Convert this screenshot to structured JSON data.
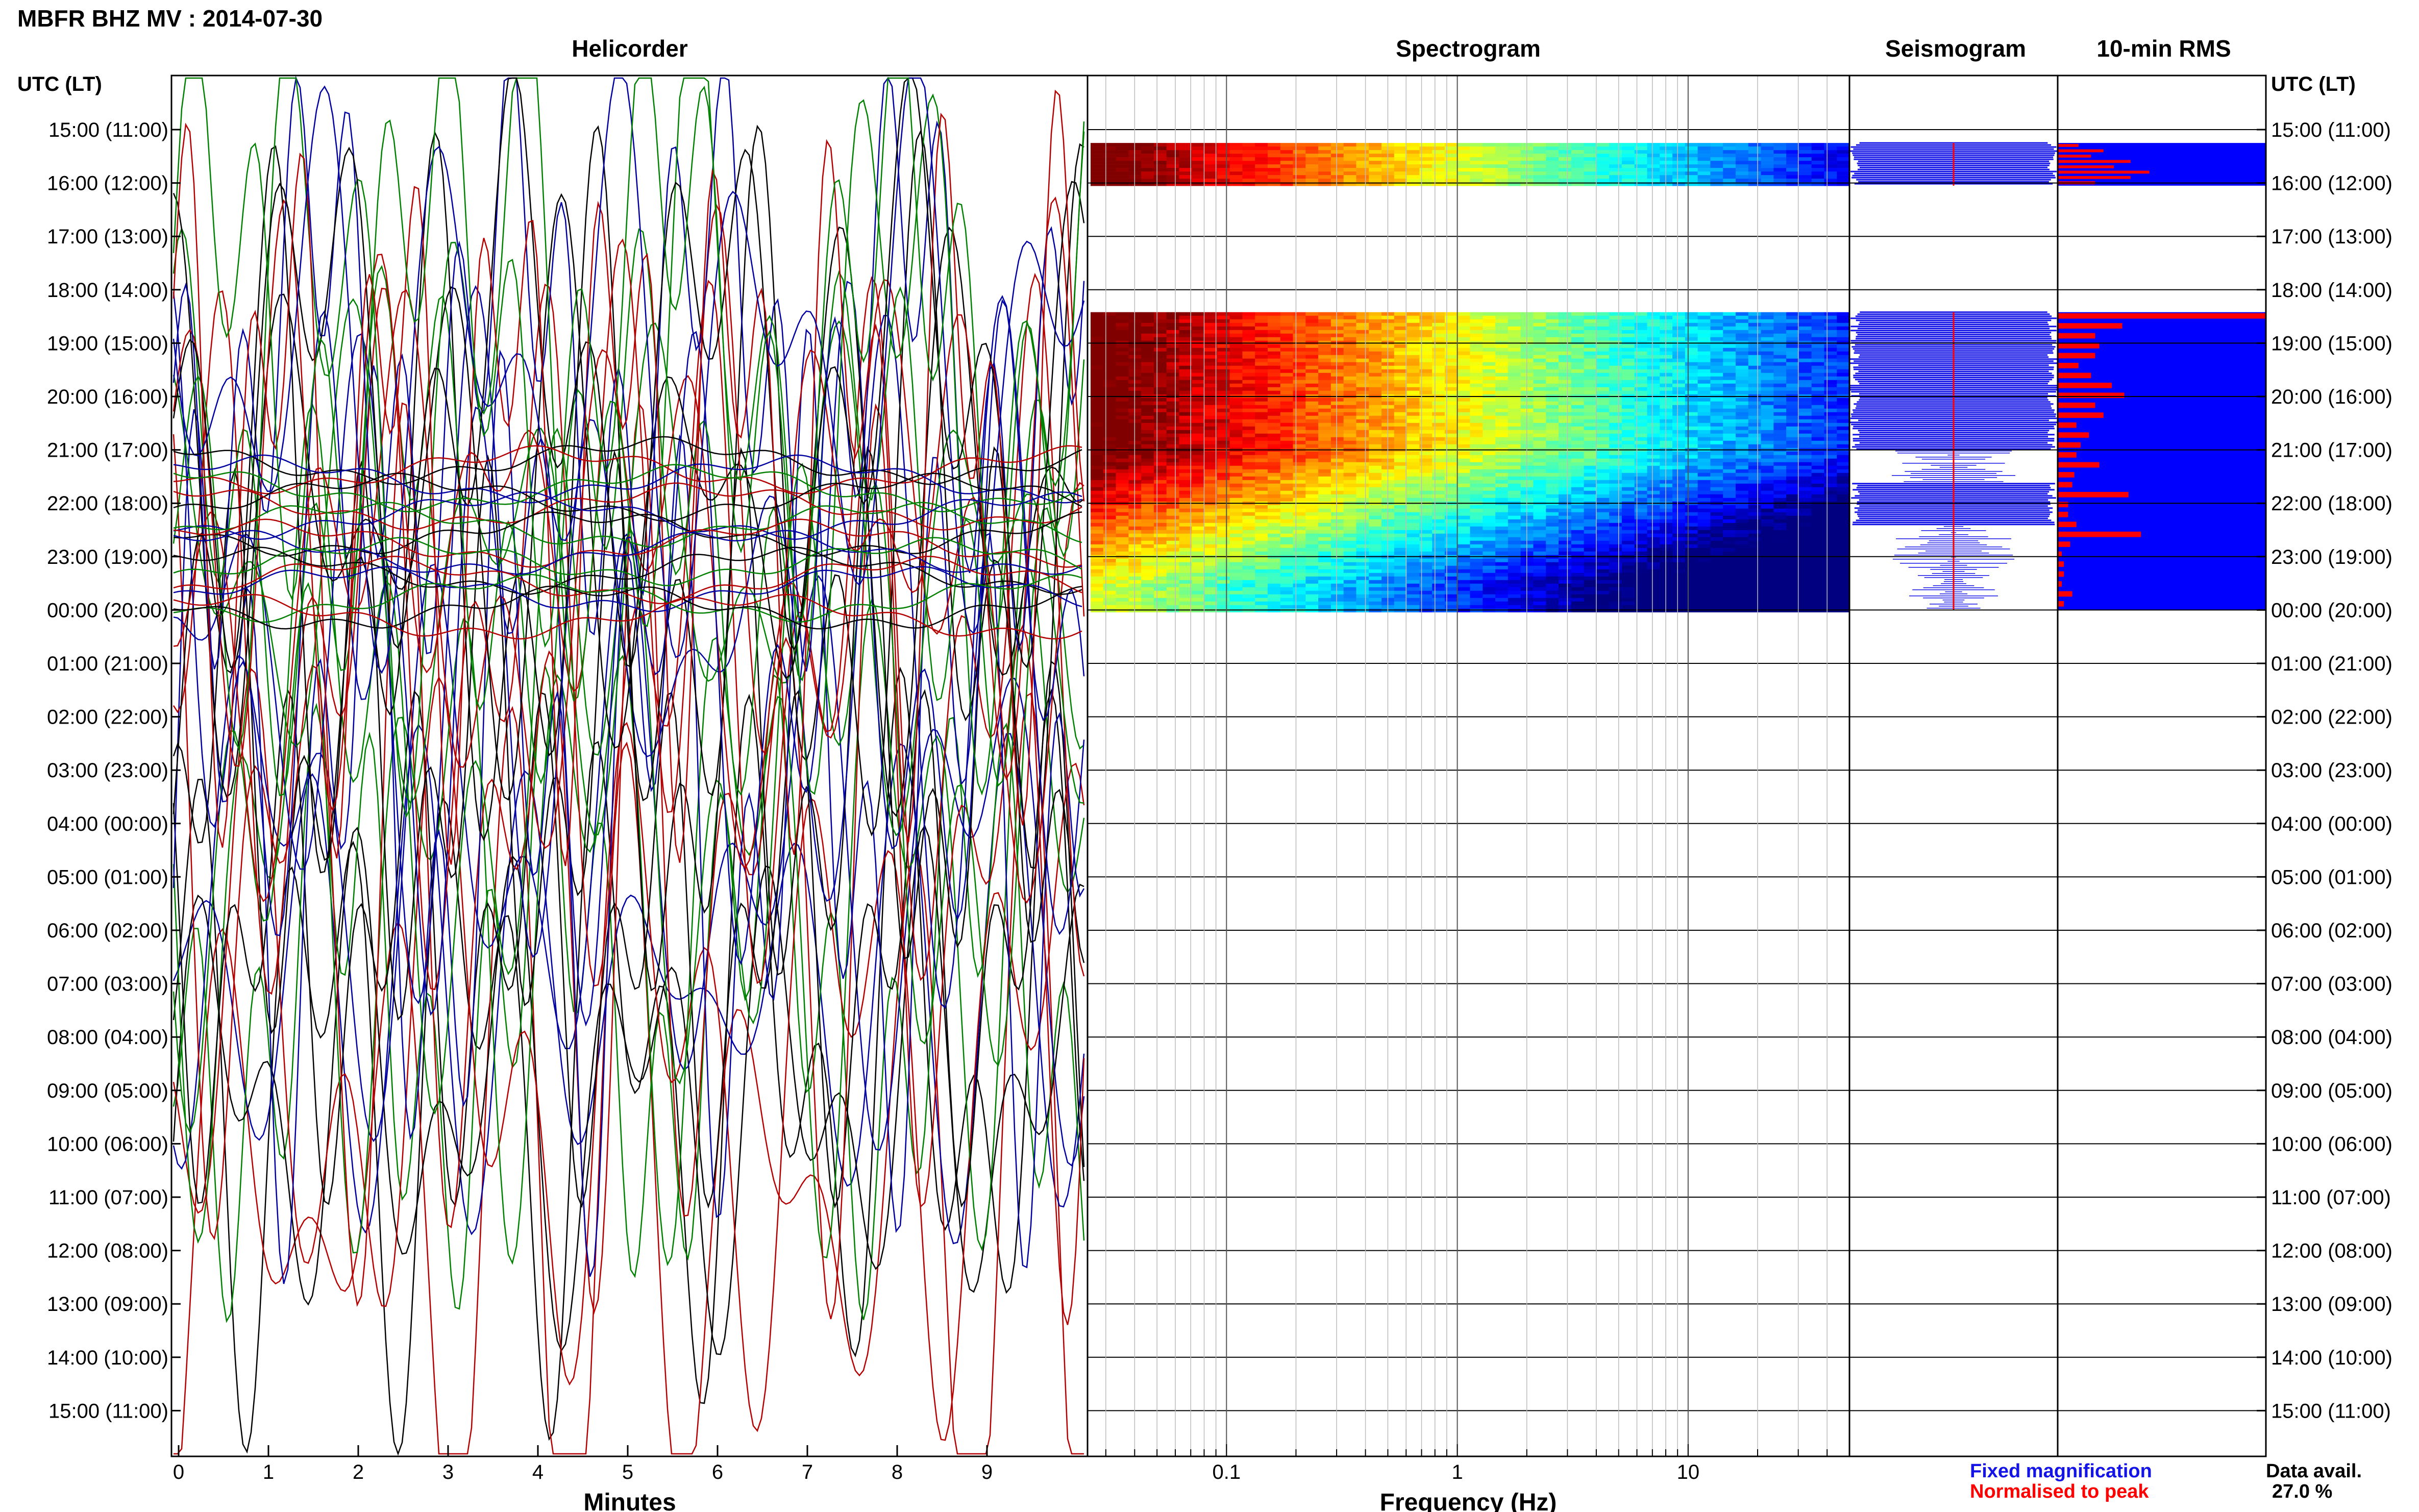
{
  "title": "MBFR BHZ MV : 2014-07-30",
  "time_axis_label": "UTC (LT)",
  "time_labels": [
    "15:00 (11:00)",
    "16:00 (12:00)",
    "17:00 (13:00)",
    "18:00 (14:00)",
    "19:00 (15:00)",
    "20:00 (16:00)",
    "21:00 (17:00)",
    "22:00 (18:00)",
    "23:00 (19:00)",
    "00:00 (20:00)",
    "01:00 (21:00)",
    "02:00 (22:00)",
    "03:00 (23:00)",
    "04:00 (00:00)",
    "05:00 (01:00)",
    "06:00 (02:00)",
    "07:00 (03:00)",
    "08:00 (04:00)",
    "09:00 (05:00)",
    "10:00 (06:00)",
    "11:00 (07:00)",
    "12:00 (08:00)",
    "13:00 (09:00)",
    "14:00 (10:00)",
    "15:00 (11:00)"
  ],
  "legend": {
    "fixed_label": "Fixed magnification",
    "fixed_color": "#1414e6",
    "normalised_label": "Normalised to peak",
    "normalised_color": "#ff0000"
  },
  "data_avail": {
    "label": "Data avail.",
    "value": "27.0 %"
  },
  "chart_data": [
    {
      "type": "line",
      "title": "Helicorder",
      "xlabel": "Minutes",
      "ylabel": "UTC (LT)",
      "xlim": [
        0,
        10
      ],
      "x_ticks": [
        "0",
        "1",
        "2",
        "3",
        "4",
        "5",
        "6",
        "7",
        "8",
        "9"
      ],
      "trace_colors": [
        "#000000",
        "#b40000",
        "#0000a0",
        "#008000"
      ],
      "note_visible": "traces saturated (clipped) for most of the day, quieter around 21:00-00:00"
    },
    {
      "type": "heatmap",
      "title": "Spectrogram",
      "xlabel": "Frequency (Hz)",
      "x_scale": "log",
      "xlim": [
        0.025,
        50
      ],
      "x_ticks": [
        "0.1",
        "1",
        "10"
      ],
      "data_rows_utc": [
        "15:15-16:00",
        "18:25-00:00"
      ],
      "colormap": "jet"
    },
    {
      "type": "line",
      "title": "Seismogram",
      "series": [
        {
          "name": "Fixed magnification",
          "color": "#1414e6"
        },
        {
          "name": "Normalised to peak",
          "color": "#ff0000"
        }
      ]
    },
    {
      "type": "bar",
      "title": "10-min RMS",
      "series": [
        {
          "name": "Fixed magnification",
          "color": "#0000ff"
        },
        {
          "name": "Normalised to peak",
          "color": "#ff0000"
        }
      ],
      "block_1_utc": "15:15-16:05",
      "block_2_utc": "18:25-00:00",
      "block_1_normalised_values": [
        0.1,
        0.22,
        0.16,
        0.35,
        0.27,
        0.44,
        0.35,
        0.18
      ],
      "block_2_normalised_values": [
        1.0,
        0.31,
        0.18,
        0.2,
        0.18,
        0.1,
        0.16,
        0.26,
        0.32,
        0.18,
        0.22,
        0.09,
        0.15,
        0.11,
        0.09,
        0.2,
        0.08,
        0.07,
        0.34,
        0.05,
        0.05,
        0.09,
        0.4,
        0.06,
        0.02,
        0.03,
        0.03,
        0.02,
        0.07,
        0.03
      ]
    }
  ]
}
